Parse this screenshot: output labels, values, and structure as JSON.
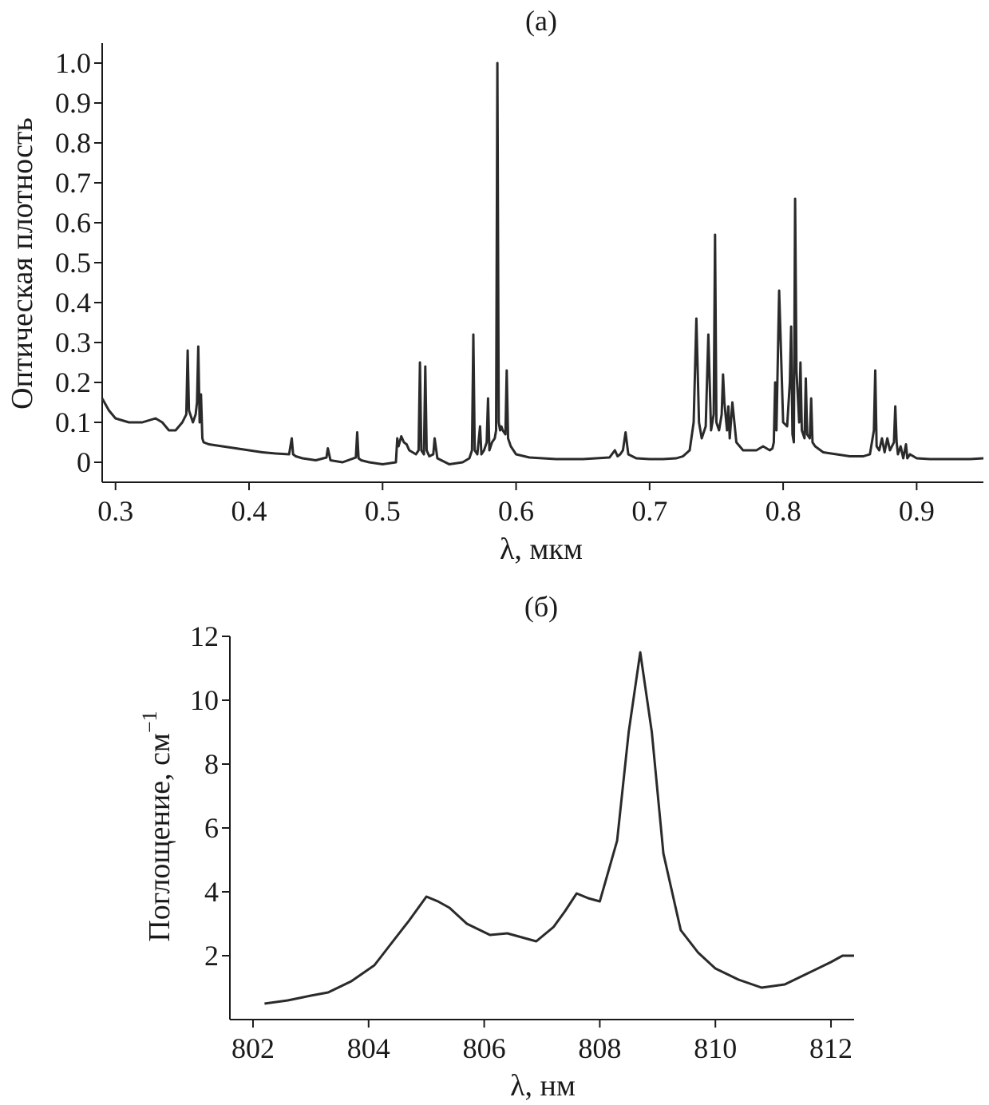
{
  "chart_data": [
    {
      "type": "line",
      "panel_label": "(a)",
      "xlabel": "λ, мкм",
      "ylabel": "Оптическая плотность",
      "xlim": [
        0.29,
        0.95
      ],
      "ylim": [
        -0.05,
        1.05
      ],
      "x_ticks": [
        0.3,
        0.4,
        0.5,
        0.6,
        0.7,
        0.8,
        0.9
      ],
      "x_tick_labels": [
        "0.3",
        "0.4",
        "0.5",
        "0.6",
        "0.7",
        "0.8",
        "0.9"
      ],
      "y_ticks": [
        0,
        0.1,
        0.2,
        0.3,
        0.4,
        0.5,
        0.6,
        0.7,
        0.8,
        0.9,
        1.0
      ],
      "y_tick_labels": [
        "0",
        "0.1",
        "0.2",
        "0.3",
        "0.4",
        "0.5",
        "0.6",
        "0.7",
        "0.8",
        "0.9",
        "1.0"
      ],
      "series": [
        {
          "x": [
            0.29,
            0.295,
            0.3,
            0.31,
            0.32,
            0.33,
            0.335,
            0.34,
            0.345,
            0.35,
            0.353,
            0.354,
            0.355,
            0.356,
            0.358,
            0.36,
            0.361,
            0.362,
            0.363,
            0.364,
            0.365,
            0.366,
            0.37,
            0.38,
            0.39,
            0.4,
            0.41,
            0.42,
            0.43,
            0.432,
            0.433,
            0.435,
            0.44,
            0.45,
            0.458,
            0.459,
            0.461,
            0.47,
            0.48,
            0.481,
            0.482,
            0.484,
            0.49,
            0.5,
            0.51,
            0.511,
            0.512,
            0.514,
            0.516,
            0.518,
            0.52,
            0.525,
            0.527,
            0.528,
            0.529,
            0.531,
            0.532,
            0.533,
            0.535,
            0.538,
            0.539,
            0.541,
            0.55,
            0.56,
            0.565,
            0.567,
            0.568,
            0.569,
            0.571,
            0.573,
            0.574,
            0.576,
            0.578,
            0.579,
            0.58,
            0.582,
            0.584,
            0.585,
            0.586,
            0.587,
            0.588,
            0.589,
            0.59,
            0.592,
            0.593,
            0.594,
            0.596,
            0.6,
            0.61,
            0.62,
            0.63,
            0.64,
            0.65,
            0.66,
            0.67,
            0.674,
            0.676,
            0.678,
            0.68,
            0.682,
            0.684,
            0.69,
            0.7,
            0.71,
            0.72,
            0.725,
            0.73,
            0.733,
            0.735,
            0.737,
            0.739,
            0.742,
            0.744,
            0.746,
            0.748,
            0.749,
            0.75,
            0.752,
            0.754,
            0.755,
            0.756,
            0.758,
            0.759,
            0.76,
            0.762,
            0.765,
            0.77,
            0.78,
            0.785,
            0.79,
            0.792,
            0.793,
            0.794,
            0.795,
            0.797,
            0.8,
            0.803,
            0.805,
            0.806,
            0.807,
            0.808,
            0.809,
            0.81,
            0.812,
            0.813,
            0.814,
            0.816,
            0.817,
            0.818,
            0.82,
            0.821,
            0.822,
            0.824,
            0.83,
            0.84,
            0.85,
            0.86,
            0.865,
            0.868,
            0.869,
            0.87,
            0.872,
            0.874,
            0.876,
            0.878,
            0.88,
            0.883,
            0.884,
            0.885,
            0.886,
            0.888,
            0.89,
            0.892,
            0.893,
            0.895,
            0.9,
            0.91,
            0.92,
            0.93,
            0.94,
            0.95
          ],
          "y": [
            0.16,
            0.13,
            0.11,
            0.1,
            0.1,
            0.11,
            0.1,
            0.08,
            0.08,
            0.1,
            0.12,
            0.28,
            0.13,
            0.12,
            0.1,
            0.12,
            0.15,
            0.29,
            0.1,
            0.17,
            0.06,
            0.05,
            0.045,
            0.04,
            0.035,
            0.03,
            0.025,
            0.022,
            0.02,
            0.06,
            0.02,
            0.015,
            0.01,
            0.005,
            0.012,
            0.035,
            0.005,
            0.0,
            0.012,
            0.075,
            0.01,
            0.005,
            0.0,
            -0.005,
            0.0,
            0.06,
            0.04,
            0.065,
            0.05,
            0.045,
            0.03,
            0.02,
            0.03,
            0.25,
            0.03,
            0.02,
            0.24,
            0.03,
            0.015,
            0.02,
            0.06,
            0.01,
            -0.005,
            0.0,
            0.01,
            0.03,
            0.32,
            0.03,
            0.02,
            0.09,
            0.02,
            0.03,
            0.05,
            0.16,
            0.03,
            0.05,
            0.06,
            0.08,
            1.0,
            0.1,
            0.08,
            0.09,
            0.08,
            0.07,
            0.23,
            0.06,
            0.04,
            0.02,
            0.012,
            0.01,
            0.008,
            0.008,
            0.008,
            0.01,
            0.012,
            0.03,
            0.015,
            0.02,
            0.03,
            0.075,
            0.02,
            0.01,
            0.008,
            0.008,
            0.01,
            0.015,
            0.03,
            0.1,
            0.36,
            0.1,
            0.06,
            0.09,
            0.32,
            0.08,
            0.12,
            0.57,
            0.1,
            0.08,
            0.12,
            0.22,
            0.15,
            0.08,
            0.14,
            0.06,
            0.15,
            0.05,
            0.03,
            0.03,
            0.04,
            0.03,
            0.035,
            0.05,
            0.2,
            0.08,
            0.43,
            0.1,
            0.09,
            0.2,
            0.34,
            0.07,
            0.05,
            0.66,
            0.23,
            0.1,
            0.25,
            0.08,
            0.06,
            0.21,
            0.07,
            0.06,
            0.16,
            0.05,
            0.04,
            0.025,
            0.02,
            0.015,
            0.015,
            0.02,
            0.08,
            0.23,
            0.04,
            0.03,
            0.06,
            0.025,
            0.06,
            0.03,
            0.05,
            0.14,
            0.05,
            0.02,
            0.04,
            0.01,
            0.045,
            0.01,
            0.02,
            0.01,
            0.008,
            0.008,
            0.008,
            0.008,
            0.01
          ]
        }
      ]
    },
    {
      "type": "line",
      "panel_label": "(б)",
      "xlabel": "λ, нм",
      "ylabel": "Поглощение, см",
      "ylabel_sup": "−1",
      "xlim": [
        801.6,
        812.4
      ],
      "ylim": [
        0,
        12
      ],
      "x_ticks": [
        802,
        804,
        806,
        808,
        810,
        812
      ],
      "x_tick_labels": [
        "802",
        "804",
        "806",
        "808",
        "810",
        "812"
      ],
      "y_ticks": [
        2,
        4,
        6,
        8,
        10,
        12
      ],
      "y_tick_labels": [
        "2",
        "4",
        "6",
        "8",
        "10",
        "12"
      ],
      "series": [
        {
          "x": [
            802.2,
            802.6,
            803.0,
            803.3,
            803.7,
            804.1,
            804.4,
            804.7,
            805.0,
            805.2,
            805.4,
            805.7,
            806.1,
            806.4,
            806.7,
            806.9,
            807.2,
            807.4,
            807.6,
            807.8,
            808.0,
            808.3,
            808.5,
            808.7,
            808.9,
            809.1,
            809.4,
            809.7,
            810.0,
            810.4,
            810.8,
            811.2,
            811.6,
            812.0,
            812.2,
            812.4
          ],
          "y": [
            0.5,
            0.6,
            0.75,
            0.85,
            1.2,
            1.7,
            2.4,
            3.1,
            3.85,
            3.7,
            3.5,
            3.0,
            2.65,
            2.7,
            2.55,
            2.45,
            2.9,
            3.4,
            3.95,
            3.8,
            3.7,
            5.6,
            9.0,
            11.5,
            9.0,
            5.2,
            2.8,
            2.1,
            1.6,
            1.25,
            1.0,
            1.1,
            1.45,
            1.8,
            2.0,
            2.0
          ]
        }
      ]
    }
  ]
}
